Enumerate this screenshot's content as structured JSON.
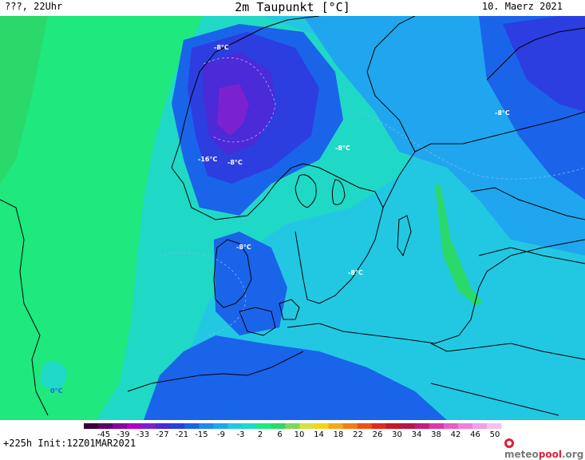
{
  "header": {
    "left": "???, 22Uhr",
    "title": "2m Taupunkt [°C]",
    "date": "10. Maerz 2021"
  },
  "footer": {
    "run_info": "+225h  Init:12Z01MAR2021",
    "brand_main": "meteo",
    "brand_accent": "pool",
    "brand_suffix": ".org"
  },
  "colors": {
    "sea_green": "#1ee87e",
    "light_green": "#2bd96a",
    "cyan": "#1fd9c6",
    "turquoise": "#22c8e2",
    "sky_blue": "#20a6ee",
    "blue": "#1a64ea",
    "deep_blue": "#2c3ee0",
    "violet": "#4b2ad8",
    "purple": "#7a22d0",
    "coast": "#000000"
  },
  "contour_labels": [
    "-8°C",
    "-16°C",
    "-8°C",
    "-8°C",
    "-8°C",
    "-8°C",
    "-8°C",
    "0°C"
  ],
  "legend": {
    "ticks": [
      "-45",
      "-39",
      "-33",
      "-27",
      "-21",
      "-15",
      "-9",
      "-3",
      "2",
      "6",
      "10",
      "14",
      "18",
      "22",
      "26",
      "30",
      "34",
      "38",
      "42",
      "46",
      "50"
    ],
    "colors": [
      "#3a003a",
      "#5c006a",
      "#8a00a0",
      "#b000c8",
      "#7a22d0",
      "#4b2ad8",
      "#2c3ee0",
      "#1a64ea",
      "#2088f0",
      "#20a6ee",
      "#22c8e2",
      "#1fd9c6",
      "#1ee87e",
      "#2bd96a",
      "#7ed957",
      "#d8e040",
      "#f5d21c",
      "#f7a81a",
      "#f27d18",
      "#ec5218",
      "#e02a1c",
      "#c81824",
      "#b4184a",
      "#c41e7c",
      "#d83ca8",
      "#e85cc8",
      "#f07ee0",
      "#f59ee8",
      "#f8c0f0"
    ]
  }
}
